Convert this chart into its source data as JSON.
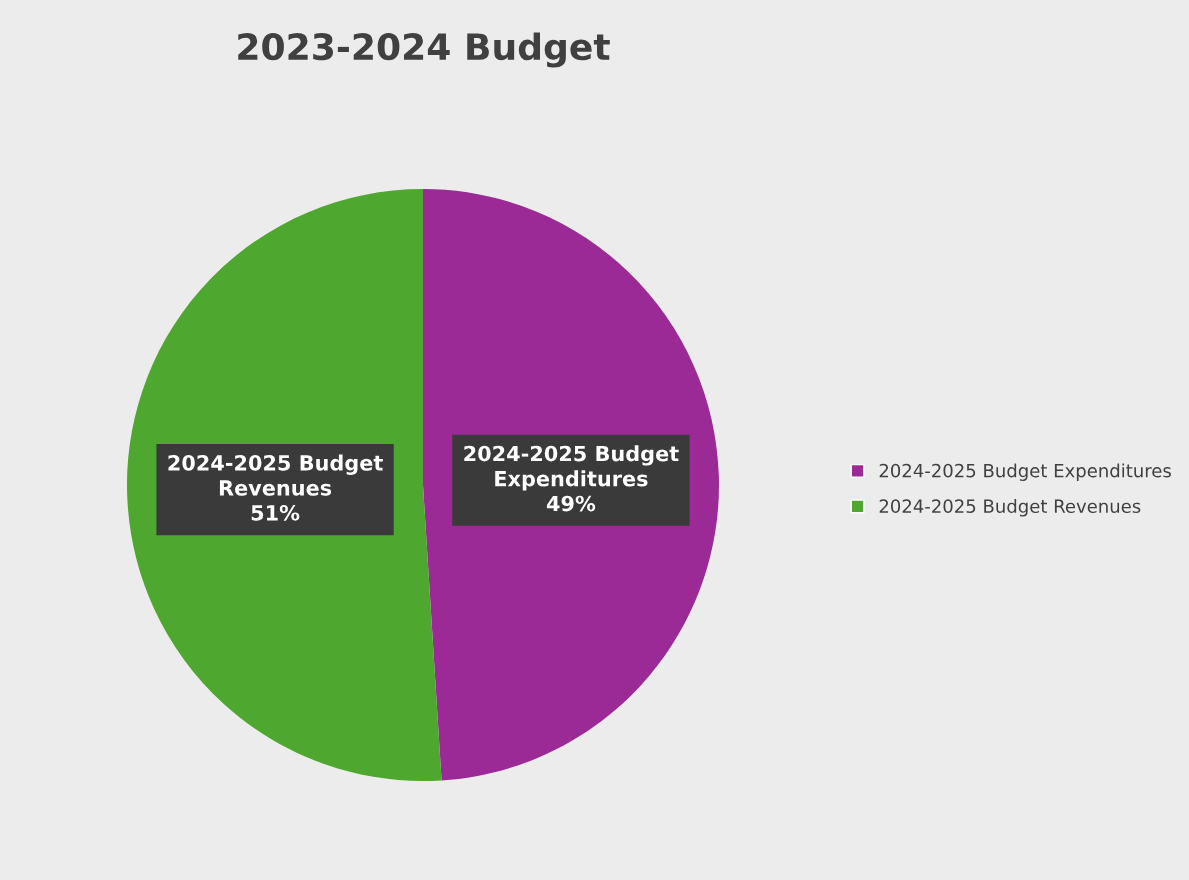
{
  "chart_data": {
    "type": "pie",
    "title": "2023-2024 Budget",
    "categories": [
      "2024-2025 Budget Expenditures",
      "2024-2025 Budget Revenues"
    ],
    "values": [
      49,
      51
    ],
    "colors": [
      "#9b2a96",
      "#4ea72e"
    ],
    "value_labels": [
      "49%",
      "51%"
    ],
    "legend": "right"
  }
}
